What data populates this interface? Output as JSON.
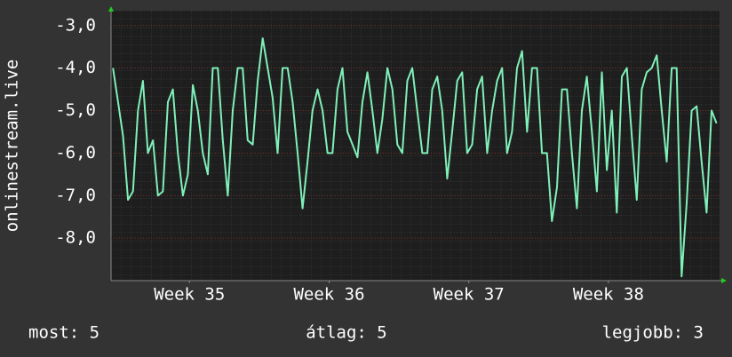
{
  "chart_data": {
    "type": "line",
    "y_label": "onlinestream.live",
    "x": [
      0,
      0.25,
      0.5,
      0.75,
      1,
      1.25,
      1.5,
      1.75,
      2,
      2.25,
      2.5,
      2.75,
      3,
      3.25,
      3.5,
      3.75,
      4,
      4.25,
      4.5,
      4.75,
      5,
      5.25,
      5.5,
      5.75,
      6,
      6.25,
      6.5,
      6.75,
      7,
      7.25,
      7.5,
      7.75,
      8,
      8.25,
      8.5,
      8.75,
      9,
      9.25,
      9.5,
      9.75,
      10,
      10.25,
      10.5,
      10.75,
      11,
      11.25,
      11.5,
      11.75,
      12,
      12.25,
      12.5,
      12.75,
      13,
      13.25,
      13.5,
      13.75,
      14,
      14.25,
      14.5,
      14.75,
      15,
      15.25,
      15.5,
      15.75,
      16,
      16.25,
      16.5,
      16.75,
      17,
      17.25,
      17.5,
      17.75,
      18,
      18.25,
      18.5,
      18.75,
      19,
      19.25,
      19.5,
      19.75,
      20,
      20.25,
      20.5,
      20.75,
      21,
      21.25,
      21.5,
      21.75,
      22,
      22.25,
      22.5,
      22.75,
      23,
      23.25,
      23.5,
      23.75,
      24,
      24.25,
      24.5,
      24.75,
      25,
      25.25,
      25.5,
      25.75,
      26,
      26.25,
      26.5,
      26.75,
      27,
      27.25,
      27.5,
      27.75,
      28,
      28.25,
      28.5,
      28.75,
      29,
      29.25,
      29.5,
      29.75,
      30,
      30.25
    ],
    "series": [
      {
        "name": "onlinestream.live",
        "color": "#7ff0b8",
        "values": [
          -4.0,
          -4.8,
          -5.6,
          -7.1,
          -6.9,
          -5.0,
          -4.3,
          -6.0,
          -5.7,
          -7.0,
          -6.9,
          -4.8,
          -4.5,
          -6.0,
          -7.0,
          -6.5,
          -4.4,
          -5.0,
          -6.0,
          -6.5,
          -4.0,
          -4.0,
          -5.7,
          -7.0,
          -5.0,
          -4.0,
          -4.0,
          -5.7,
          -5.8,
          -4.3,
          -3.3,
          -4.0,
          -4.7,
          -6.0,
          -4.0,
          -4.0,
          -4.8,
          -6.0,
          -7.3,
          -6.2,
          -5.0,
          -4.5,
          -5.0,
          -6.0,
          -6.0,
          -4.5,
          -4.0,
          -5.5,
          -5.8,
          -6.1,
          -4.8,
          -4.1,
          -5.0,
          -6.0,
          -5.2,
          -4.0,
          -4.5,
          -5.8,
          -6.0,
          -4.3,
          -4.0,
          -5.0,
          -6.0,
          -6.0,
          -4.5,
          -4.2,
          -5.0,
          -6.6,
          -5.5,
          -4.3,
          -4.1,
          -6.0,
          -5.8,
          -4.5,
          -4.2,
          -6.0,
          -5.0,
          -4.3,
          -4.0,
          -6.0,
          -5.5,
          -4.0,
          -3.6,
          -5.5,
          -4.0,
          -4.0,
          -6.0,
          -6.0,
          -7.6,
          -6.8,
          -4.5,
          -4.5,
          -6.0,
          -7.3,
          -5.0,
          -4.2,
          -5.5,
          -6.9,
          -4.1,
          -6.4,
          -5.0,
          -7.4,
          -4.2,
          -4.0,
          -5.6,
          -7.1,
          -4.5,
          -4.1,
          -4.0,
          -3.7,
          -5.0,
          -6.2,
          -4.0,
          -4.0,
          -8.9,
          -7.2,
          -5.0,
          -4.9,
          -6.2,
          -7.4,
          -5.0,
          -5.3
        ]
      }
    ],
    "xlim": [
      -0.1,
      30.4
    ],
    "ylim": [
      -9,
      -2.65
    ],
    "xticks": [
      {
        "value": 3.83,
        "label": "Week 35"
      },
      {
        "value": 10.83,
        "label": "Week 36"
      },
      {
        "value": 17.83,
        "label": "Week 37"
      },
      {
        "value": 24.83,
        "label": "Week 38"
      }
    ],
    "yticks": [
      {
        "value": -3,
        "label": "-3,0"
      },
      {
        "value": -4,
        "label": "-4,0"
      },
      {
        "value": -5,
        "label": "-5,0"
      },
      {
        "value": -6,
        "label": "-6,0"
      },
      {
        "value": -7,
        "label": "-7,0"
      },
      {
        "value": -8,
        "label": "-8,0"
      }
    ],
    "grid": true,
    "footer": {
      "current": "most: 5",
      "average": "átlag: 5",
      "best": "legjobb: 3"
    }
  }
}
